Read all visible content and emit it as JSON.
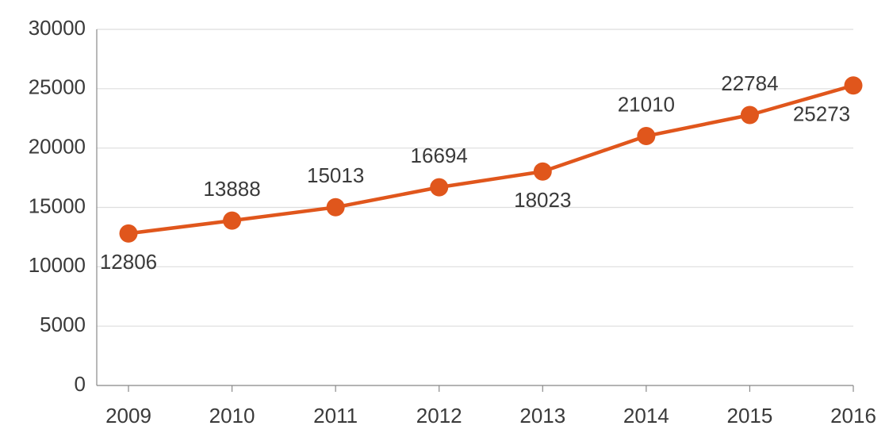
{
  "chart_data": {
    "type": "line",
    "categories": [
      "2009",
      "2010",
      "2011",
      "2012",
      "2013",
      "2014",
      "2015",
      "2016"
    ],
    "values": [
      12806,
      13888,
      15013,
      16694,
      18023,
      21010,
      22784,
      25273
    ],
    "color": "#e0561c",
    "ylim": [
      0,
      30000
    ],
    "yticks": [
      0,
      5000,
      10000,
      15000,
      20000,
      25000,
      30000
    ],
    "grid": true
  }
}
